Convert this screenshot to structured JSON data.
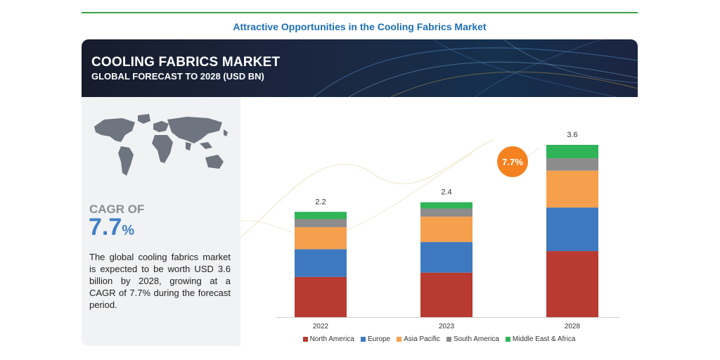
{
  "header": {
    "title": "Attractive Opportunities in the Cooling Fabrics Market"
  },
  "banner": {
    "title": "COOLING FABRICS MARKET",
    "subtitle": "GLOBAL FORECAST TO 2028 (USD BN)"
  },
  "cagr": {
    "label": "CAGR OF",
    "value": "7.7",
    "unit": "%",
    "badge": "7.7%",
    "description": "The global cooling fabrics market is expected to be worth USD 3.6 billion by 2028, growing at a CAGR of 7.7% during the forecast period."
  },
  "colors": {
    "accent_line": "#3aa045",
    "title_blue": "#1d6fb8",
    "cagr_blue": "#3f7fc6",
    "badge": "#f58220",
    "north_america": "#b83a30",
    "europe": "#3e79c0",
    "asia_pacific": "#f6a04d",
    "south_america": "#8c8c8c",
    "middle_east_africa": "#2fb457"
  },
  "chart_data": {
    "type": "bar",
    "stacked": true,
    "categories": [
      "2022",
      "2023",
      "2028"
    ],
    "totals": [
      "2.2",
      "2.4",
      "3.6"
    ],
    "series": [
      {
        "name": "North America",
        "color": "#b83a30",
        "values": [
          0.84,
          0.93,
          1.38
        ]
      },
      {
        "name": "Europe",
        "color": "#3e79c0",
        "values": [
          0.58,
          0.64,
          0.91
        ]
      },
      {
        "name": "Asia Pacific",
        "color": "#f6a04d",
        "values": [
          0.46,
          0.53,
          0.77
        ]
      },
      {
        "name": "South America",
        "color": "#8c8c8c",
        "values": [
          0.17,
          0.17,
          0.26
        ]
      },
      {
        "name": "Middle East & Africa",
        "color": "#2fb457",
        "values": [
          0.15,
          0.13,
          0.28
        ]
      }
    ],
    "annotation": "7.7%",
    "legend_position": "bottom",
    "grid": false,
    "ylim": [
      0,
      3.6
    ]
  }
}
